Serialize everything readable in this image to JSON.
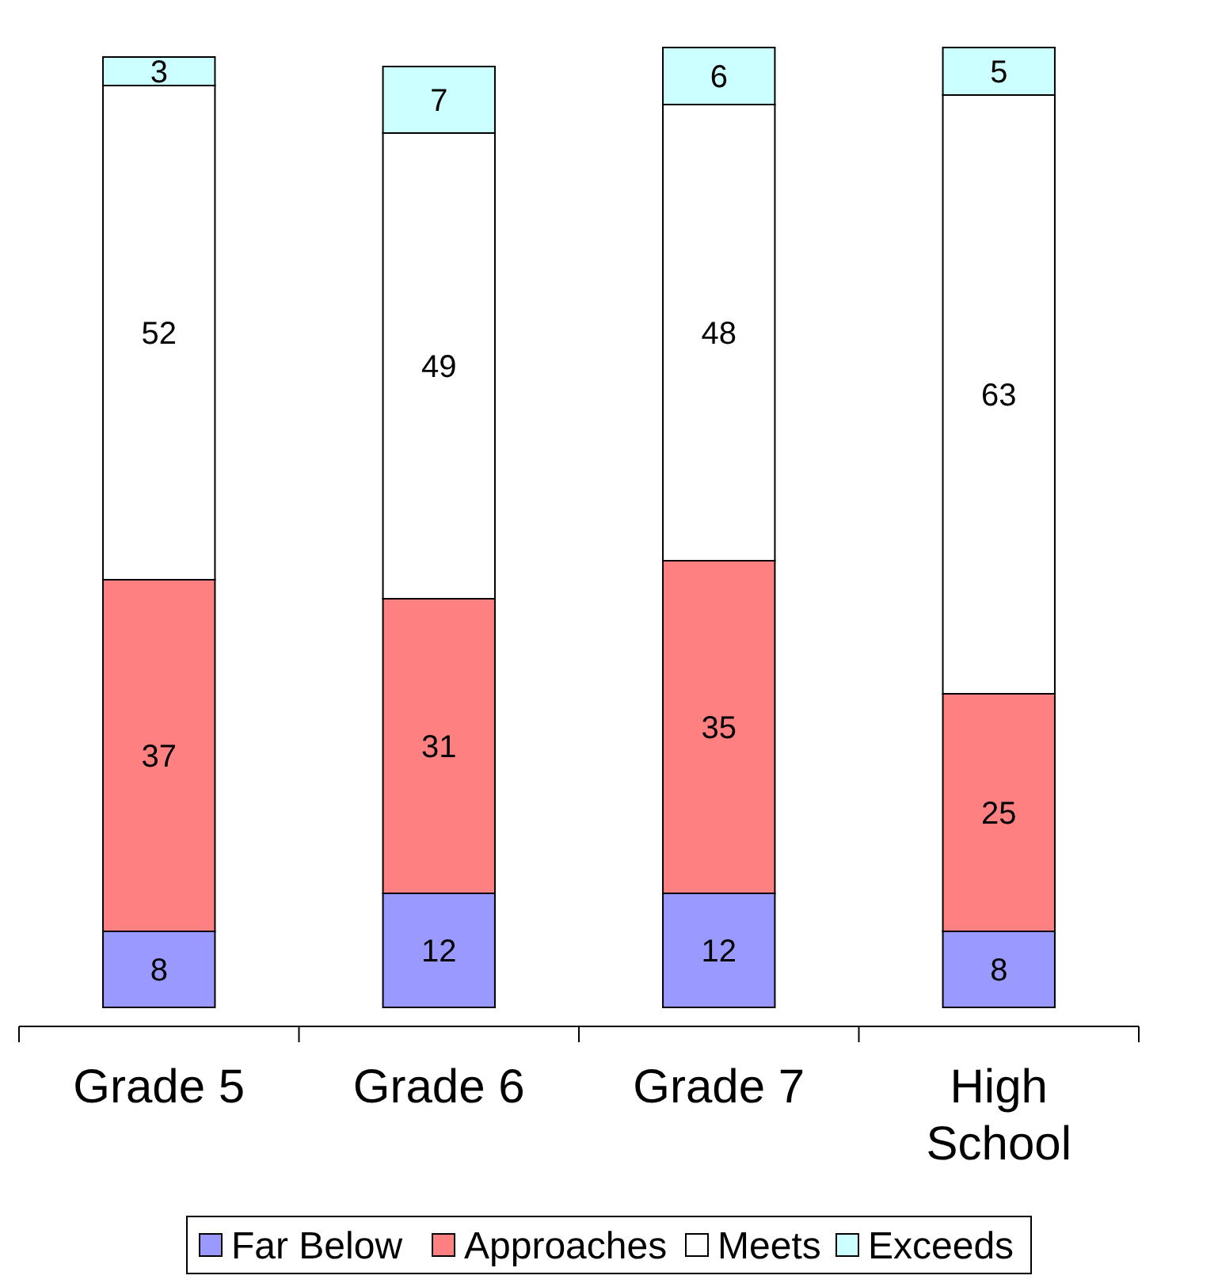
{
  "chart_data": {
    "type": "bar",
    "stacked": true,
    "data_labels": true,
    "legend": "bottom",
    "categories": [
      "Grade 5",
      "Grade 6",
      "Grade 7",
      "High School"
    ],
    "series": [
      {
        "name": "Far Below",
        "color": "#9999ff",
        "values": [
          8,
          12,
          12,
          8
        ]
      },
      {
        "name": "Approaches",
        "color": "#ff8080",
        "values": [
          37,
          31,
          35,
          25
        ]
      },
      {
        "name": "Meets",
        "color": "#ffffff",
        "values": [
          52,
          49,
          48,
          63
        ]
      },
      {
        "name": "Exceeds",
        "color": "#ccffff",
        "values": [
          3,
          7,
          6,
          5
        ]
      }
    ]
  }
}
